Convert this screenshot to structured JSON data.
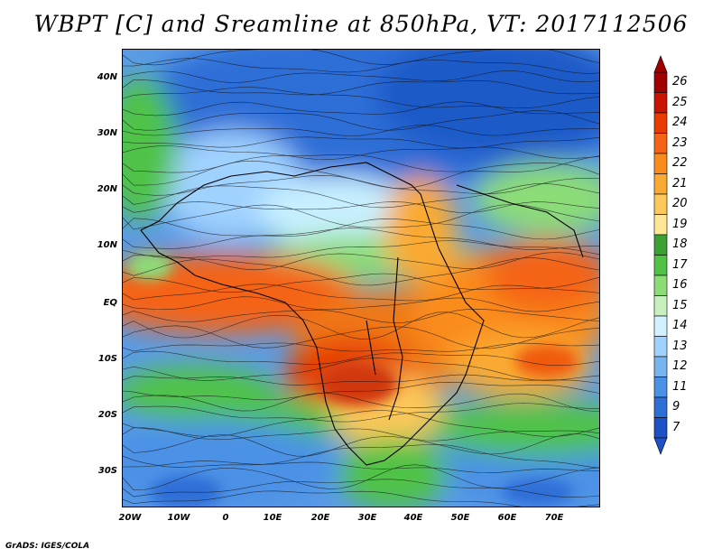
{
  "title": "WBPT [C] and Sreamline at 850hPa, VT: 2017112506",
  "footer": "GrADS: IGES/COLA",
  "map": {
    "lat_labels": [
      "40N",
      "30N",
      "20N",
      "10N",
      "EQ",
      "10S",
      "20S",
      "30S"
    ],
    "lon_labels": [
      "20W",
      "10W",
      "0",
      "10E",
      "20E",
      "30E",
      "40E",
      "50E",
      "60E",
      "70E"
    ],
    "lon_range": [
      -21,
      80
    ],
    "lat_range": [
      -36,
      45
    ]
  },
  "colorbar": {
    "labels": [
      "26",
      "25",
      "24",
      "23",
      "22",
      "21",
      "20",
      "19",
      "18",
      "17",
      "16",
      "15",
      "14",
      "13",
      "12",
      "11",
      "9",
      "7"
    ],
    "colors": [
      "#a00000",
      "#c81400",
      "#e63c00",
      "#f56416",
      "#fa8c1e",
      "#faaa32",
      "#fcc85a",
      "#fde696",
      "#3ca032",
      "#50c346",
      "#8cdc78",
      "#c8f0be",
      "#d2f0ff",
      "#a0d2ff",
      "#78b4f0",
      "#4b91e6",
      "#2d6ed7",
      "#1e50c8"
    ]
  }
}
